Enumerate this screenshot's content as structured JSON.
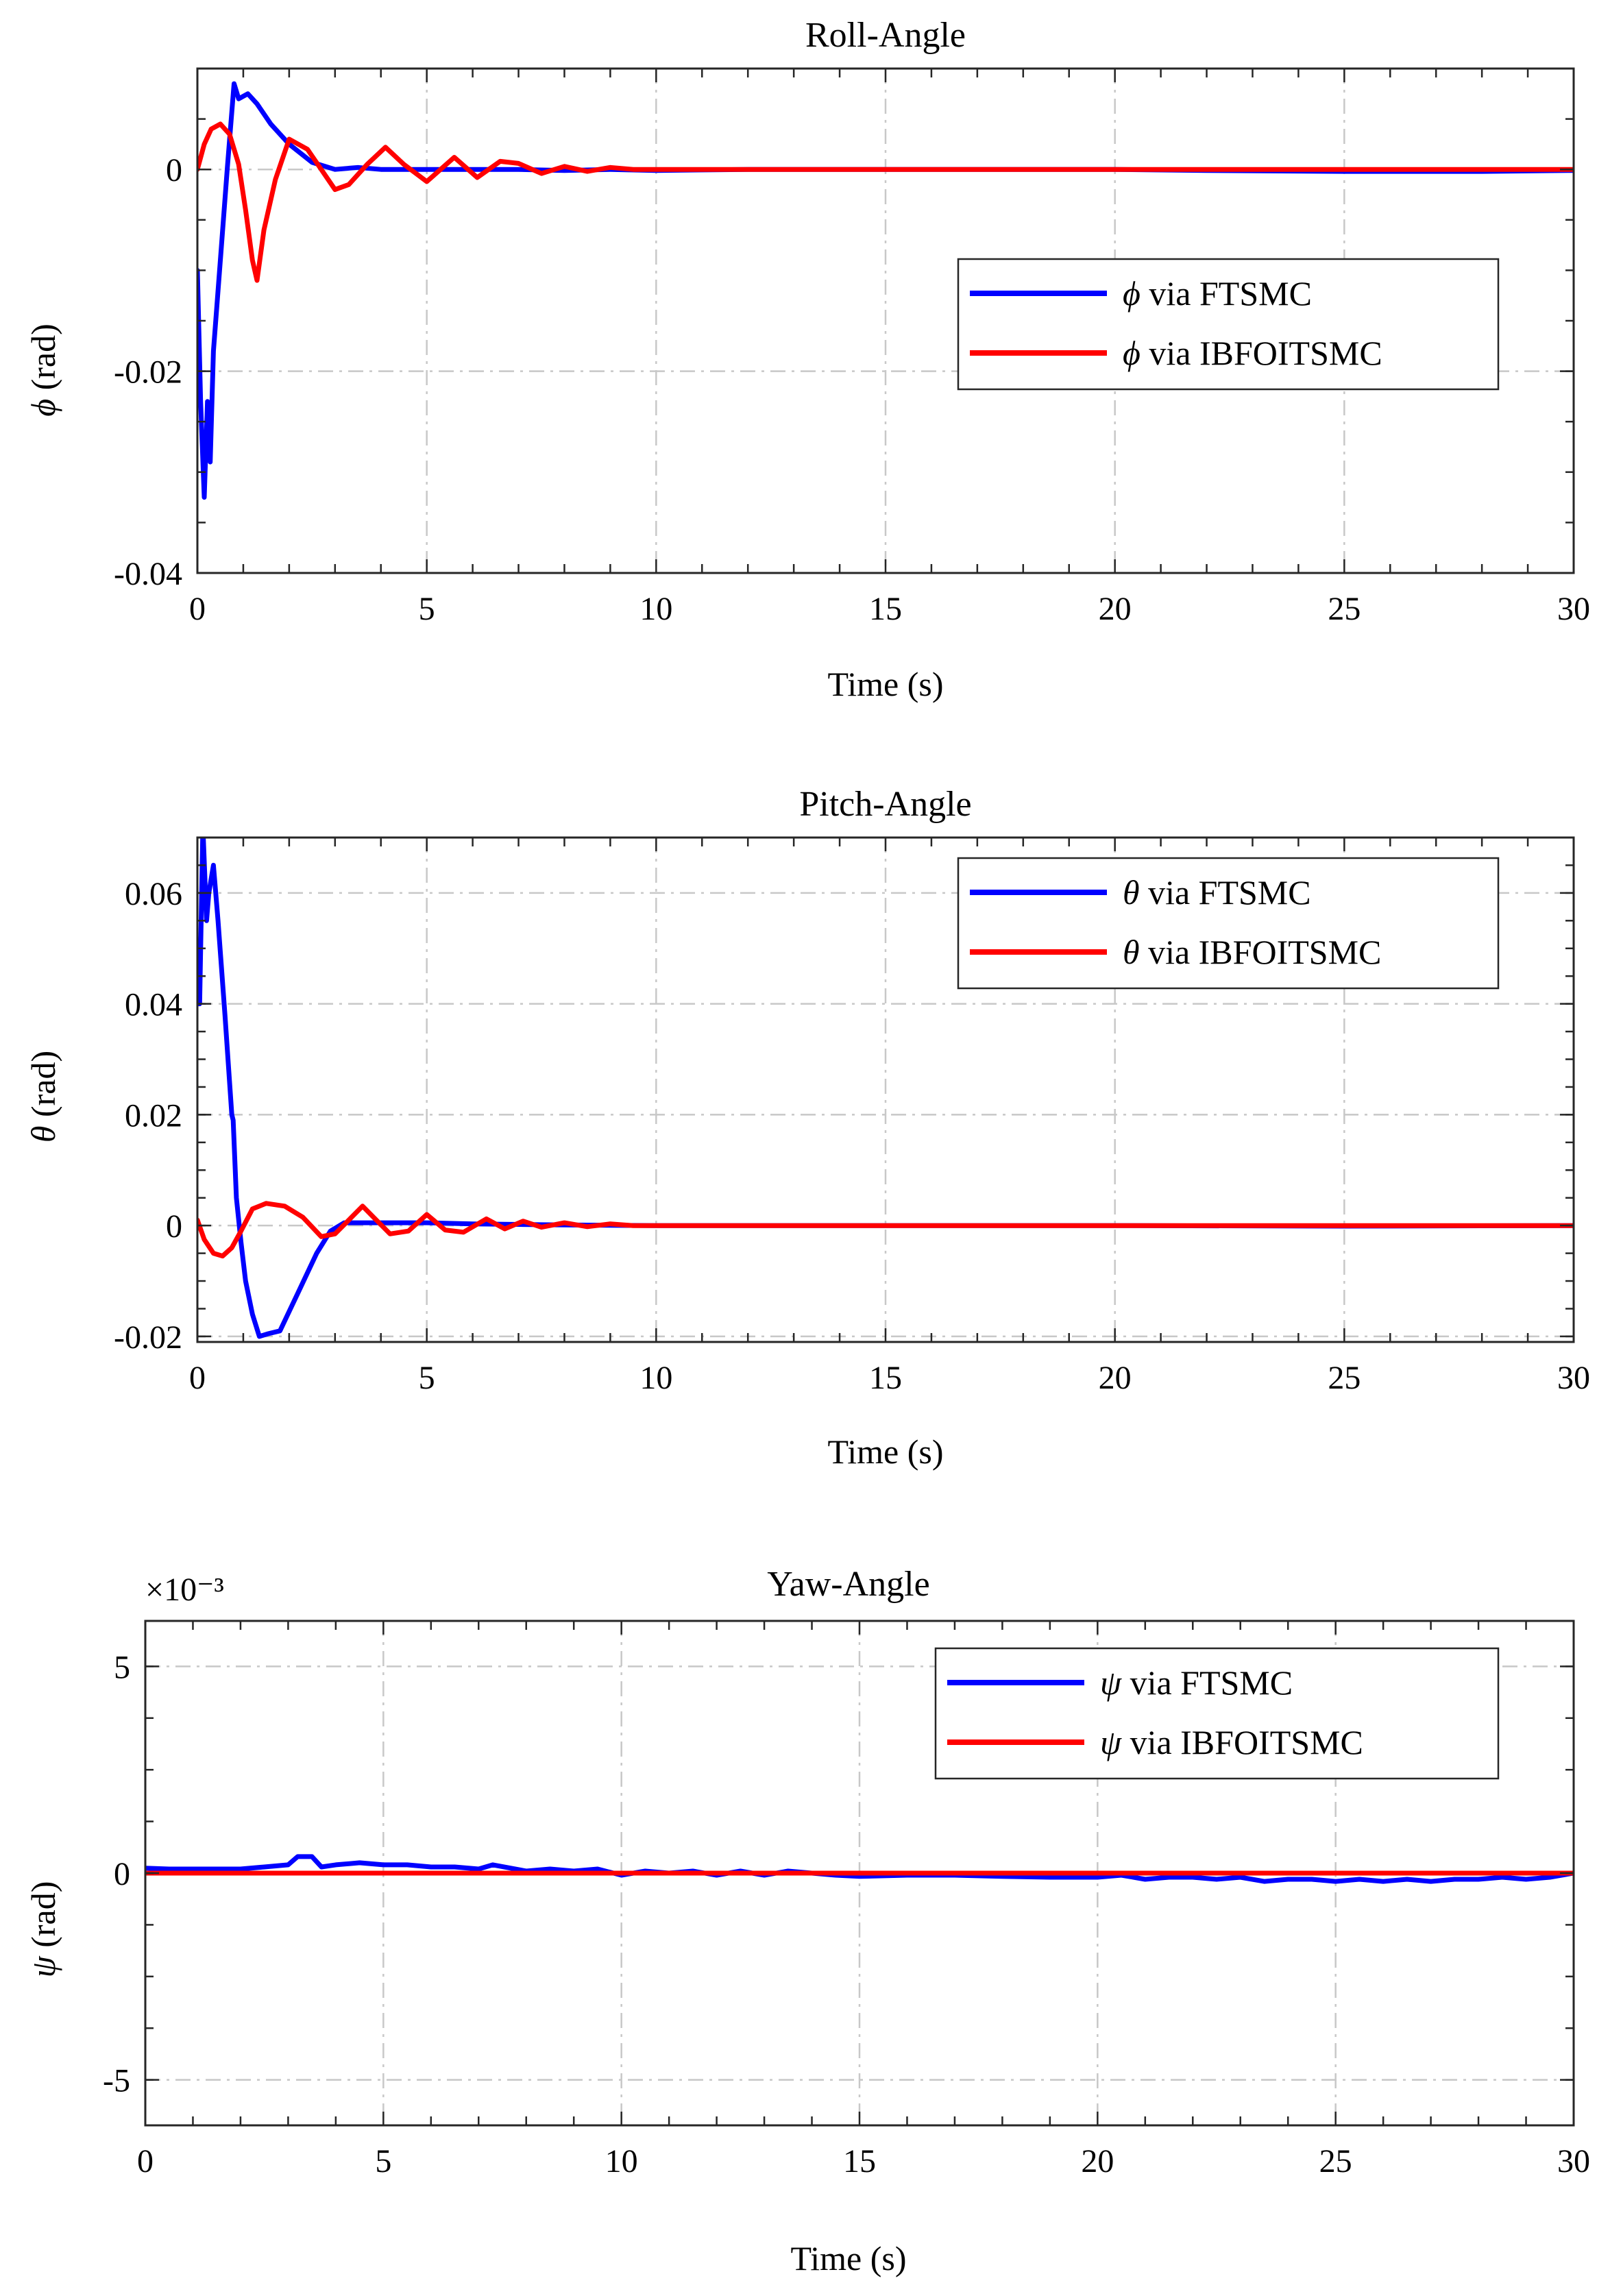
{
  "chart_data": [
    {
      "type": "line",
      "title": "Roll-Angle",
      "xlabel": "Time (s)",
      "ylabel_symbol": "ϕ",
      "ylabel_unit": "(rad)",
      "xlim": [
        0,
        30
      ],
      "ylim": [
        -0.04,
        0.01
      ],
      "xticks": [
        0,
        5,
        10,
        15,
        20,
        25,
        30
      ],
      "xtick_labels": [
        "0",
        "5",
        "10",
        "15",
        "20",
        "25",
        "30"
      ],
      "yticks": [
        -0.04,
        -0.02,
        0
      ],
      "ytick_labels": [
        "-0.04",
        "-0.02",
        "0"
      ],
      "exponent_label": "",
      "grid": true,
      "legend_position": "upper-right",
      "series": [
        {
          "symbol": "ϕ",
          "label": "via FTSMC",
          "color": "#0000ff",
          "x": [
            0,
            0.07,
            0.15,
            0.22,
            0.28,
            0.35,
            0.5,
            0.65,
            0.8,
            0.9,
            1.1,
            1.3,
            1.6,
            2.0,
            2.5,
            3.0,
            3.5,
            4,
            5,
            6,
            7,
            8,
            9,
            10,
            12,
            15,
            18,
            20,
            22,
            25,
            28,
            30
          ],
          "y": [
            -0.01,
            -0.023,
            -0.0325,
            -0.023,
            -0.029,
            -0.018,
            -0.009,
            0,
            0.0085,
            0.007,
            0.0075,
            0.0065,
            0.0045,
            0.0025,
            0.0007,
            0,
            0.0002,
            0,
            0,
            0,
            0,
            -0.0001,
            0,
            -0.0001,
            0,
            0,
            0,
            0,
            -0.0001,
            -0.0002,
            -0.0002,
            -0.0001
          ]
        },
        {
          "symbol": "ϕ",
          "label": "via IBFOITSMC",
          "color": "#ff0000",
          "x": [
            0,
            0.15,
            0.3,
            0.5,
            0.7,
            0.9,
            1.05,
            1.2,
            1.3,
            1.45,
            1.7,
            2.0,
            2.4,
            2.7,
            3.0,
            3.3,
            3.7,
            4.1,
            4.5,
            5.0,
            5.6,
            6.1,
            6.6,
            7.0,
            7.5,
            8.0,
            8.5,
            9.0,
            9.5,
            10,
            11,
            12,
            15,
            20,
            25,
            30
          ],
          "y": [
            0,
            0.0025,
            0.004,
            0.0045,
            0.0035,
            0.0005,
            -0.004,
            -0.009,
            -0.011,
            -0.006,
            -0.001,
            0.003,
            0.002,
            0,
            -0.002,
            -0.0015,
            0.0005,
            0.0022,
            0.0005,
            -0.0012,
            0.0012,
            -0.0008,
            0.0008,
            0.0006,
            -0.0004,
            0.0003,
            -0.0002,
            0.0002,
            0,
            0,
            0,
            0,
            0,
            0,
            0,
            0
          ]
        }
      ]
    },
    {
      "type": "line",
      "title": "Pitch-Angle",
      "xlabel": "Time (s)",
      "ylabel_symbol": "θ",
      "ylabel_unit": "(rad)",
      "xlim": [
        0,
        30
      ],
      "ylim": [
        -0.021,
        0.07
      ],
      "xticks": [
        0,
        5,
        10,
        15,
        20,
        25,
        30
      ],
      "xtick_labels": [
        "0",
        "5",
        "10",
        "15",
        "20",
        "25",
        "30"
      ],
      "yticks": [
        -0.02,
        0,
        0.02,
        0.04,
        0.06
      ],
      "ytick_labels": [
        "-0.02",
        "0",
        "0.02",
        "0.04",
        "0.06"
      ],
      "exponent_label": "",
      "grid": true,
      "legend_position": "upper-right",
      "series": [
        {
          "symbol": "θ",
          "label": "via FTSMC",
          "color": "#0000ff",
          "x": [
            0,
            0.05,
            0.12,
            0.2,
            0.25,
            0.35,
            0.45,
            0.6,
            0.75,
            0.78,
            0.85,
            0.95,
            1.05,
            1.2,
            1.35,
            1.55,
            1.8,
            2.2,
            2.6,
            2.9,
            3.2,
            4,
            5,
            6,
            7,
            8,
            10,
            12,
            15,
            20,
            25,
            30
          ],
          "y": [
            0.04,
            0.04,
            0.072,
            0.055,
            0.06,
            0.065,
            0.055,
            0.038,
            0.02,
            0.019,
            0.005,
            -0.003,
            -0.01,
            -0.016,
            -0.02,
            -0.0195,
            -0.019,
            -0.012,
            -0.005,
            -0.001,
            0.0005,
            0.0005,
            0.0005,
            0.0003,
            0.0002,
            0.0001,
            0,
            0,
            0,
            0,
            -0.0001,
            0
          ]
        },
        {
          "symbol": "θ",
          "label": "via IBFOITSMC",
          "color": "#ff0000",
          "x": [
            0,
            0.15,
            0.35,
            0.55,
            0.75,
            0.95,
            1.2,
            1.5,
            1.9,
            2.3,
            2.7,
            3.0,
            3.3,
            3.6,
            3.9,
            4.2,
            4.6,
            5.0,
            5.4,
            5.8,
            6.3,
            6.7,
            7.1,
            7.5,
            8.0,
            8.5,
            9.0,
            9.5,
            10,
            12,
            15,
            20,
            25,
            30
          ],
          "y": [
            0.001,
            -0.0025,
            -0.005,
            -0.0055,
            -0.004,
            -0.001,
            0.003,
            0.004,
            0.0035,
            0.0015,
            -0.002,
            -0.0015,
            0.001,
            0.0035,
            0.001,
            -0.0015,
            -0.001,
            0.002,
            -0.0008,
            -0.0012,
            0.0012,
            -0.0006,
            0.0008,
            -0.0003,
            0.0005,
            -0.0002,
            0.0003,
            0,
            0,
            0,
            0,
            0,
            0,
            0
          ]
        }
      ]
    },
    {
      "type": "line",
      "title": "Yaw-Angle",
      "xlabel": "Time (s)",
      "ylabel_symbol": "ψ",
      "ylabel_unit": "(rad)",
      "xlim": [
        0,
        30
      ],
      "ylim": [
        -0.0061,
        0.0061
      ],
      "xticks": [
        0,
        5,
        10,
        15,
        20,
        25,
        30
      ],
      "xtick_labels": [
        "0",
        "5",
        "10",
        "15",
        "20",
        "25",
        "30"
      ],
      "yticks": [
        -0.005,
        0,
        0.005
      ],
      "ytick_labels": [
        "-5",
        "0",
        "5"
      ],
      "exponent_label": "×10⁻³",
      "grid": true,
      "legend_position": "upper-right",
      "series": [
        {
          "symbol": "ψ",
          "label": "via FTSMC",
          "color": "#0000ff",
          "x": [
            0,
            0.5,
            1,
            2,
            2.5,
            3,
            3.2,
            3.5,
            3.7,
            4.0,
            4.5,
            5.0,
            5.5,
            6,
            6.5,
            7,
            7.3,
            8,
            8.5,
            9,
            9.5,
            10,
            10.5,
            11,
            11.5,
            12,
            12.5,
            13,
            13.5,
            14,
            14.5,
            15,
            16,
            17,
            18,
            19,
            20,
            20.5,
            21,
            21.5,
            22,
            22.5,
            23,
            23.5,
            24,
            24.5,
            25,
            25.5,
            26,
            26.5,
            27,
            27.5,
            28,
            28.5,
            29,
            29.5,
            30
          ],
          "y": [
            0.00012,
            0.0001,
            0.0001,
            0.0001,
            0.00015,
            0.0002,
            0.0004,
            0.0004,
            0.00015,
            0.0002,
            0.00025,
            0.0002,
            0.0002,
            0.00015,
            0.00015,
            0.0001,
            0.0002,
            5e-05,
            0.0001,
            5e-05,
            0.0001,
            -5e-05,
            5e-05,
            0,
            5e-05,
            -5e-05,
            5e-05,
            -5e-05,
            5e-05,
            0,
            -5e-05,
            -8e-05,
            -5e-05,
            -5e-05,
            -8e-05,
            -0.0001,
            -0.0001,
            -5e-05,
            -0.00015,
            -0.0001,
            -0.0001,
            -0.00015,
            -0.0001,
            -0.0002,
            -0.00015,
            -0.00015,
            -0.0002,
            -0.00015,
            -0.0002,
            -0.00015,
            -0.0002,
            -0.00015,
            -0.00015,
            -0.0001,
            -0.00015,
            -0.0001,
            0
          ]
        },
        {
          "symbol": "ψ",
          "label": "via IBFOITSMC",
          "color": "#ff0000",
          "x": [
            0,
            30
          ],
          "y": [
            0,
            0
          ]
        }
      ]
    }
  ]
}
